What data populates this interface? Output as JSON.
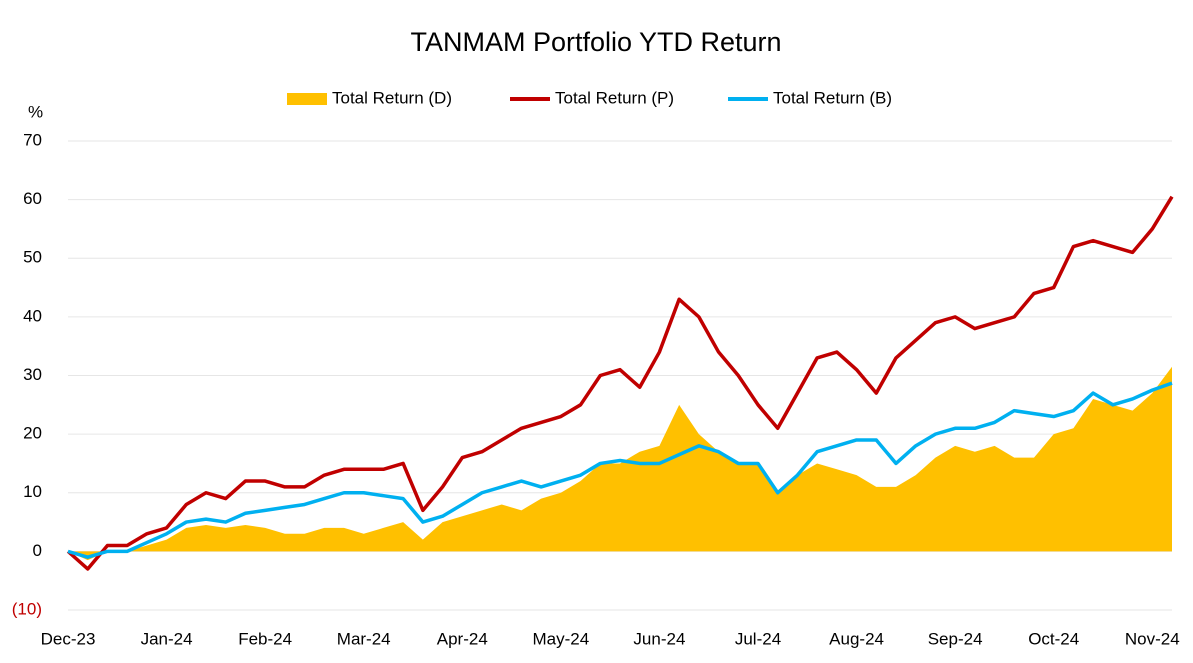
{
  "chart_data": {
    "type": "line",
    "title": "TANMAM Portfolio YTD Return",
    "y_unit": "%",
    "categories": [
      "Dec-23",
      null,
      null,
      null,
      null,
      "Jan-24",
      null,
      null,
      null,
      null,
      "Feb-24",
      null,
      null,
      null,
      null,
      "Mar-24",
      null,
      null,
      null,
      null,
      "Apr-24",
      null,
      null,
      null,
      null,
      "May-24",
      null,
      null,
      null,
      null,
      "Jun-24",
      null,
      null,
      null,
      null,
      "Jul-24",
      null,
      null,
      null,
      null,
      "Aug-24",
      null,
      null,
      null,
      null,
      "Sep-24",
      null,
      null,
      null,
      null,
      "Oct-24",
      null,
      null,
      null,
      null,
      "Nov-24",
      null
    ],
    "series": [
      {
        "name": "Total Return (D)",
        "kind": "area",
        "color": "#ffc000",
        "values": [
          0,
          -1.5,
          0,
          0,
          1,
          2,
          4,
          4.5,
          4,
          4.5,
          4,
          3,
          3,
          4,
          4,
          3,
          4,
          5,
          2,
          5,
          6,
          7,
          8,
          7,
          9,
          10,
          12,
          15,
          15,
          17,
          18,
          25,
          20,
          17,
          15,
          15,
          10,
          13,
          15,
          14,
          13,
          11,
          11,
          13,
          16,
          18,
          17,
          18,
          16,
          16,
          20,
          21,
          26,
          25,
          24,
          27,
          31.5
        ]
      },
      {
        "name": "Total Return (P)",
        "kind": "line",
        "color": "#c00000",
        "values": [
          0,
          -3,
          1,
          1,
          3,
          4,
          8,
          10,
          9,
          12,
          12,
          11,
          11,
          13,
          14,
          14,
          14,
          15,
          7,
          11,
          16,
          17,
          19,
          21,
          22,
          23,
          25,
          30,
          31,
          28,
          34,
          43,
          40,
          34,
          30,
          25,
          21,
          27,
          33,
          34,
          31,
          27,
          33,
          36,
          39,
          40,
          38,
          39,
          40,
          44,
          45,
          52,
          53,
          52,
          51,
          55,
          60.5
        ]
      },
      {
        "name": "Total Return (B)",
        "kind": "line",
        "color": "#00b0f0",
        "values": [
          0,
          -1,
          0,
          0,
          1.5,
          3,
          5,
          5.5,
          5,
          6.5,
          7,
          7.5,
          8,
          9,
          10,
          10,
          9.5,
          9,
          5,
          6,
          8,
          10,
          11,
          12,
          11,
          12,
          13,
          15,
          15.5,
          15,
          15,
          16.5,
          18,
          17,
          15,
          15,
          10,
          13,
          17,
          18,
          19,
          19,
          15,
          18,
          20,
          21,
          21,
          22,
          24,
          23.5,
          23,
          24,
          27,
          25,
          26,
          27.5,
          28.7
        ]
      }
    ],
    "ylim": [
      -10,
      70
    ],
    "yticks": [
      {
        "value": -10,
        "label": "(10)"
      },
      0,
      10,
      20,
      30,
      40,
      50,
      60,
      70
    ],
    "negative_tick_color": "#c00000",
    "grid": true,
    "legend": "top"
  }
}
